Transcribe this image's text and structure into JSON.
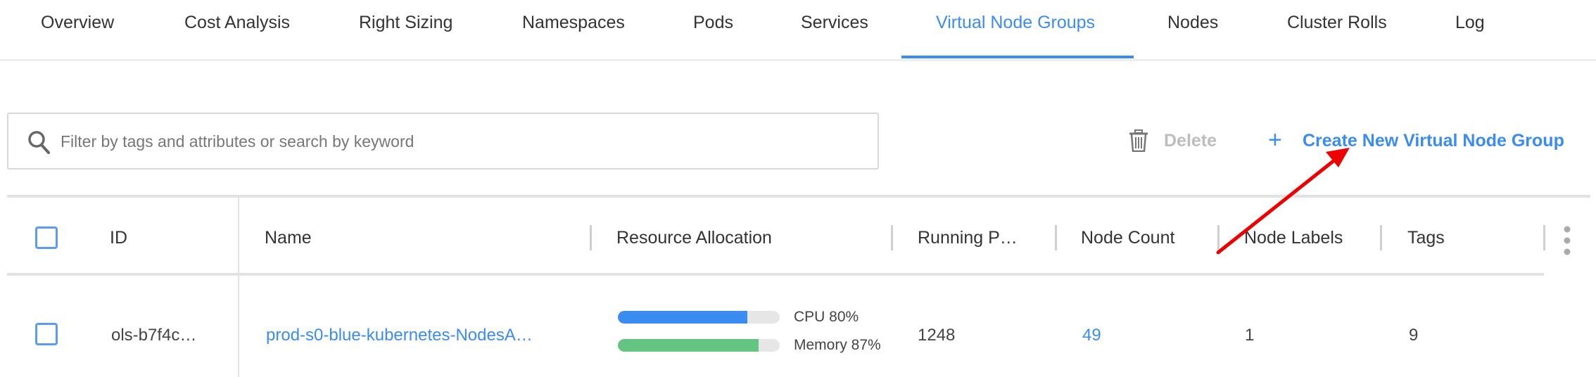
{
  "tabs": [
    {
      "label": "Overview"
    },
    {
      "label": "Cost Analysis"
    },
    {
      "label": "Right Sizing"
    },
    {
      "label": "Namespaces"
    },
    {
      "label": "Pods"
    },
    {
      "label": "Services"
    },
    {
      "label": "Virtual Node Groups",
      "active": true
    },
    {
      "label": "Nodes"
    },
    {
      "label": "Cluster Rolls"
    },
    {
      "label": "Log"
    }
  ],
  "search": {
    "placeholder": "Filter by tags and attributes or search by keyword",
    "value": ""
  },
  "toolbar": {
    "delete_label": "Delete",
    "create_label": "Create New Virtual Node Group"
  },
  "colors": {
    "accent": "#3b8cf1",
    "cpu_bar": "#3b8cf1",
    "memory_bar": "#64c482",
    "annotation_arrow": "#ee0000"
  },
  "table": {
    "columns": [
      "ID",
      "Name",
      "Resource Allocation",
      "Running P…",
      "Node Count",
      "Node Labels",
      "Tags"
    ],
    "rows": [
      {
        "id": "ols-b7f4c…",
        "name": "prod-s0-blue-kubernetes-NodesA…",
        "cpu_label": "CPU 80%",
        "cpu_percent": 80,
        "memory_label": "Memory 87%",
        "memory_percent": 87,
        "running_pods": "1248",
        "node_count": "49",
        "node_labels": "1",
        "tags": "9"
      }
    ]
  }
}
